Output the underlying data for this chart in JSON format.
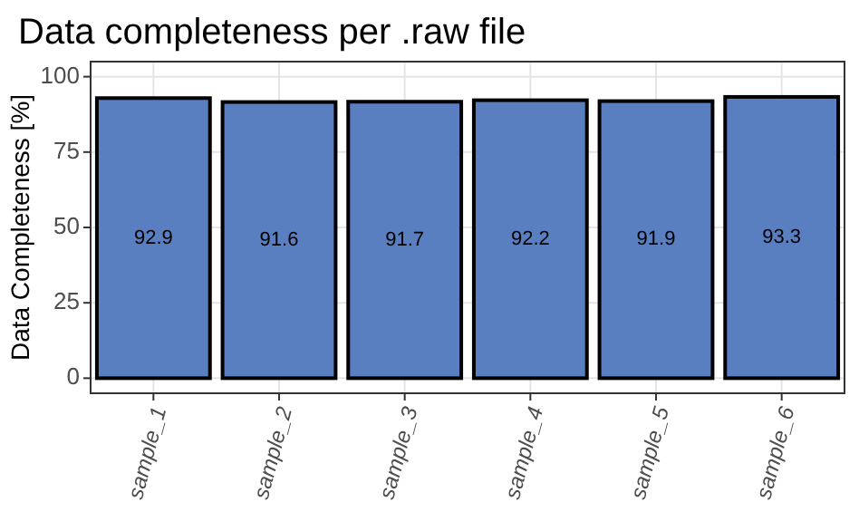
{
  "chart_data": {
    "type": "bar",
    "title": "Data completeness per .raw file",
    "ylabel": "Data Completeness [%]",
    "categories": [
      "sample_1",
      "sample_2",
      "sample_3",
      "sample_4",
      "sample_5",
      "sample_6"
    ],
    "values": [
      92.9,
      91.6,
      91.7,
      92.2,
      91.9,
      93.3
    ],
    "color": "#5a7fc0",
    "ylim": [
      -5,
      105
    ],
    "yticks": [
      0,
      25,
      50,
      75,
      100
    ],
    "grid": true,
    "data_labels": true
  }
}
